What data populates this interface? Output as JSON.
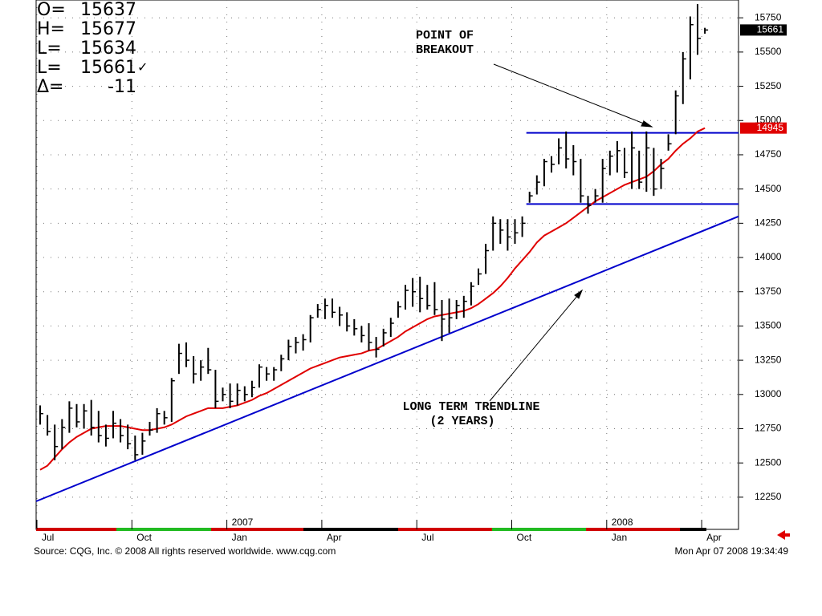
{
  "chart_data": {
    "type": "ohlc",
    "readout_labels": [
      "O=",
      "H=",
      "L=",
      "L=",
      "Δ="
    ],
    "readout_open": 15637,
    "change": -11,
    "check": "✓",
    "categories": [
      "Jul",
      null,
      null,
      null,
      null,
      null,
      null,
      null,
      null,
      null,
      null,
      null,
      null,
      "Oct",
      null,
      null,
      null,
      null,
      null,
      null,
      null,
      null,
      null,
      null,
      null,
      null,
      "Jan",
      null,
      null,
      null,
      null,
      null,
      null,
      null,
      null,
      null,
      null,
      null,
      null,
      "Apr",
      null,
      null,
      null,
      null,
      null,
      null,
      null,
      null,
      null,
      null,
      null,
      null,
      "Jul",
      null,
      null,
      null,
      null,
      null,
      null,
      null,
      null,
      null,
      null,
      null,
      null,
      "Oct",
      null,
      null,
      null,
      null,
      null,
      null,
      null,
      null,
      null,
      null,
      null,
      null,
      "Jan",
      null,
      null,
      null,
      null,
      null,
      null,
      null,
      null,
      null,
      null,
      null,
      null,
      "Apr"
    ],
    "year_labels": [
      "2007",
      "2008"
    ],
    "color": "#000000",
    "high": [
      12920,
      12850,
      12780,
      12820,
      12950,
      12930,
      12930,
      12960,
      12880,
      12780,
      12880,
      12820,
      12780,
      12700,
      12720,
      12800,
      12900,
      12880,
      13120,
      13370,
      13380,
      13280,
      13250,
      13340,
      13180,
      13050,
      13080,
      13080,
      13060,
      13100,
      13220,
      13200,
      13200,
      13290,
      13400,
      13420,
      13440,
      13580,
      13660,
      13700,
      13700,
      13640,
      13600,
      13550,
      13500,
      13520,
      13420,
      13480,
      13560,
      13680,
      13800,
      13850,
      13860,
      13800,
      13820,
      13690,
      13700,
      13690,
      13720,
      13820,
      13920,
      14100,
      14300,
      14280,
      14280,
      14280,
      14300,
      14480,
      14600,
      14720,
      14740,
      14870,
      14920,
      14820,
      14720,
      14450,
      14500,
      14720,
      14780,
      14850,
      14800,
      14920,
      14780,
      14920,
      14800,
      14720,
      14900,
      15220,
      15500,
      15760,
      15850,
      15677
    ],
    "low": [
      12780,
      12700,
      12520,
      12600,
      12720,
      12760,
      12750,
      12700,
      12650,
      12620,
      12680,
      12650,
      12600,
      12520,
      12560,
      12700,
      12720,
      12780,
      12800,
      13150,
      13200,
      13080,
      13100,
      13150,
      12900,
      12950,
      12900,
      12920,
      12950,
      12980,
      13050,
      13100,
      13100,
      13170,
      13250,
      13300,
      13320,
      13380,
      13560,
      13550,
      13560,
      13500,
      13460,
      13430,
      13380,
      13320,
      13270,
      13350,
      13420,
      13560,
      13620,
      13640,
      13600,
      13620,
      13580,
      13390,
      13450,
      13550,
      13560,
      13650,
      13800,
      13880,
      14050,
      14100,
      14050,
      14100,
      14150,
      14400,
      14460,
      14520,
      14620,
      14680,
      14650,
      14600,
      14400,
      14320,
      14400,
      14400,
      14600,
      14620,
      14580,
      14500,
      14500,
      14480,
      14450,
      14500,
      14780,
      14900,
      15120,
      15300,
      15480,
      15634
    ],
    "close": [
      12860,
      12730,
      12620,
      12760,
      12900,
      12800,
      12880,
      12760,
      12700,
      12680,
      12790,
      12700,
      12640,
      12560,
      12660,
      12740,
      12860,
      12830,
      13100,
      13300,
      13250,
      13150,
      13200,
      13180,
      12950,
      13000,
      12950,
      13030,
      13000,
      13050,
      13200,
      13150,
      13180,
      13260,
      13350,
      13380,
      13400,
      13560,
      13620,
      13650,
      13600,
      13580,
      13500,
      13480,
      13430,
      13380,
      13330,
      13450,
      13520,
      13640,
      13760,
      13750,
      13700,
      13650,
      13620,
      13550,
      13560,
      13650,
      13680,
      13790,
      13880,
      14050,
      14250,
      14200,
      14150,
      14180,
      14250,
      14450,
      14550,
      14700,
      14680,
      14800,
      14720,
      14700,
      14450,
      14380,
      14450,
      14650,
      14740,
      14780,
      14620,
      14800,
      14550,
      14800,
      14500,
      14650,
      14830,
      15180,
      15450,
      15700,
      15600,
      15661
    ],
    "moving_average": {
      "color": "#e00000",
      "values": [
        12450,
        12480,
        12540,
        12600,
        12650,
        12690,
        12720,
        12750,
        12760,
        12770,
        12770,
        12770,
        12760,
        12750,
        12740,
        12740,
        12750,
        12760,
        12780,
        12810,
        12840,
        12860,
        12880,
        12900,
        12900,
        12900,
        12910,
        12920,
        12940,
        12960,
        12990,
        13010,
        13040,
        13070,
        13100,
        13130,
        13160,
        13190,
        13210,
        13230,
        13250,
        13270,
        13280,
        13290,
        13300,
        13320,
        13330,
        13360,
        13390,
        13420,
        13460,
        13490,
        13520,
        13550,
        13570,
        13580,
        13590,
        13600,
        13610,
        13630,
        13660,
        13700,
        13740,
        13790,
        13850,
        13920,
        13980,
        14040,
        14110,
        14160,
        14190,
        14220,
        14250,
        14290,
        14330,
        14370,
        14410,
        14440,
        14470,
        14500,
        14530,
        14550,
        14570,
        14590,
        14630,
        14680,
        14720,
        14780,
        14830,
        14870,
        14920,
        14945
      ]
    },
    "trendlines": [
      {
        "color": "#0000cc",
        "values": [
          12220,
          14300
        ]
      },
      {
        "color": "#0000cc",
        "values": [
          14910,
          14910
        ],
        "from": 67
      },
      {
        "color": "#0000cc",
        "values": [
          14390,
          14390
        ],
        "from": 67
      }
    ],
    "ylim": [
      12015,
      15880
    ],
    "yticks": [
      12250,
      12500,
      12750,
      13000,
      13250,
      13500,
      13750,
      14000,
      14250,
      14500,
      14750,
      15000,
      15250,
      15500,
      15750
    ],
    "grid": true,
    "annotations": [
      {
        "text": [
          "POINT OF",
          "BREAKOUT"
        ]
      },
      {
        "text": [
          "LONG TERM TRENDLINE",
          "(2 YEARS)"
        ]
      }
    ],
    "source": "Source: CQG, Inc. © 2008 All rights reserved worldwide. www.cqg.com",
    "timestamp": "Mon Apr 07 2008 19:34:49"
  }
}
